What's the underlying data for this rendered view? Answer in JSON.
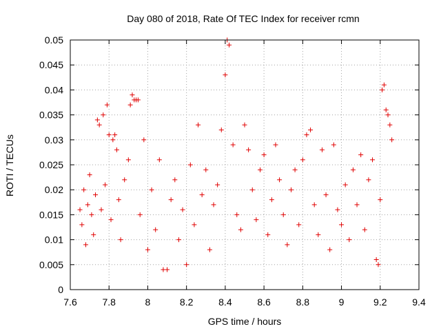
{
  "chart_data": {
    "type": "scatter",
    "title": "Day 080 of 2018, Rate Of TEC Index for receiver rcmn",
    "xlabel": "GPS time / hours",
    "ylabel": "ROTI / TECUs",
    "xlim": [
      7.6,
      9.4
    ],
    "ylim": [
      0,
      0.05
    ],
    "x_ticks": [
      "7.6",
      "7.8",
      "8",
      "8.2",
      "8.4",
      "8.6",
      "8.8",
      "9",
      "9.2",
      "9.4"
    ],
    "y_ticks": [
      "0",
      "0.005",
      "0.01",
      "0.015",
      "0.02",
      "0.025",
      "0.03",
      "0.035",
      "0.04",
      "0.045",
      "0.05"
    ],
    "grid": true,
    "marker": "plus",
    "color": "#e00000",
    "series": [
      {
        "name": "ROTI",
        "points": [
          [
            7.65,
            0.016
          ],
          [
            7.66,
            0.013
          ],
          [
            7.67,
            0.02
          ],
          [
            7.68,
            0.009
          ],
          [
            7.69,
            0.017
          ],
          [
            7.7,
            0.023
          ],
          [
            7.71,
            0.015
          ],
          [
            7.72,
            0.011
          ],
          [
            7.73,
            0.019
          ],
          [
            7.74,
            0.034
          ],
          [
            7.75,
            0.033
          ],
          [
            7.76,
            0.016
          ],
          [
            7.77,
            0.035
          ],
          [
            7.78,
            0.021
          ],
          [
            7.79,
            0.037
          ],
          [
            7.8,
            0.031
          ],
          [
            7.81,
            0.014
          ],
          [
            7.82,
            0.03
          ],
          [
            7.83,
            0.031
          ],
          [
            7.84,
            0.028
          ],
          [
            7.85,
            0.018
          ],
          [
            7.86,
            0.01
          ],
          [
            7.88,
            0.022
          ],
          [
            7.9,
            0.026
          ],
          [
            7.91,
            0.037
          ],
          [
            7.92,
            0.039
          ],
          [
            7.93,
            0.038
          ],
          [
            7.94,
            0.038
          ],
          [
            7.95,
            0.038
          ],
          [
            7.96,
            0.015
          ],
          [
            7.98,
            0.03
          ],
          [
            8.0,
            0.008
          ],
          [
            8.02,
            0.02
          ],
          [
            8.04,
            0.012
          ],
          [
            8.06,
            0.026
          ],
          [
            8.08,
            0.004
          ],
          [
            8.1,
            0.004
          ],
          [
            8.12,
            0.018
          ],
          [
            8.14,
            0.022
          ],
          [
            8.16,
            0.01
          ],
          [
            8.18,
            0.016
          ],
          [
            8.2,
            0.005
          ],
          [
            8.22,
            0.025
          ],
          [
            8.24,
            0.013
          ],
          [
            8.26,
            0.033
          ],
          [
            8.28,
            0.019
          ],
          [
            8.3,
            0.024
          ],
          [
            8.32,
            0.008
          ],
          [
            8.34,
            0.017
          ],
          [
            8.36,
            0.021
          ],
          [
            8.38,
            0.032
          ],
          [
            8.4,
            0.043
          ],
          [
            8.41,
            0.05
          ],
          [
            8.42,
            0.049
          ],
          [
            8.44,
            0.029
          ],
          [
            8.46,
            0.015
          ],
          [
            8.48,
            0.012
          ],
          [
            8.5,
            0.033
          ],
          [
            8.52,
            0.028
          ],
          [
            8.54,
            0.02
          ],
          [
            8.56,
            0.014
          ],
          [
            8.58,
            0.024
          ],
          [
            8.6,
            0.027
          ],
          [
            8.62,
            0.011
          ],
          [
            8.64,
            0.018
          ],
          [
            8.66,
            0.029
          ],
          [
            8.68,
            0.022
          ],
          [
            8.7,
            0.015
          ],
          [
            8.72,
            0.009
          ],
          [
            8.74,
            0.02
          ],
          [
            8.76,
            0.024
          ],
          [
            8.78,
            0.013
          ],
          [
            8.8,
            0.026
          ],
          [
            8.82,
            0.031
          ],
          [
            8.84,
            0.032
          ],
          [
            8.86,
            0.017
          ],
          [
            8.88,
            0.011
          ],
          [
            8.9,
            0.028
          ],
          [
            8.92,
            0.019
          ],
          [
            8.94,
            0.008
          ],
          [
            8.96,
            0.029
          ],
          [
            8.98,
            0.016
          ],
          [
            9.0,
            0.013
          ],
          [
            9.02,
            0.021
          ],
          [
            9.04,
            0.01
          ],
          [
            9.06,
            0.024
          ],
          [
            9.08,
            0.017
          ],
          [
            9.1,
            0.027
          ],
          [
            9.12,
            0.012
          ],
          [
            9.14,
            0.022
          ],
          [
            9.16,
            0.026
          ],
          [
            9.18,
            0.006
          ],
          [
            9.19,
            0.005
          ],
          [
            9.2,
            0.018
          ],
          [
            9.21,
            0.04
          ],
          [
            9.22,
            0.041
          ],
          [
            9.23,
            0.036
          ],
          [
            9.24,
            0.035
          ],
          [
            9.25,
            0.033
          ],
          [
            9.26,
            0.03
          ]
        ]
      }
    ]
  }
}
